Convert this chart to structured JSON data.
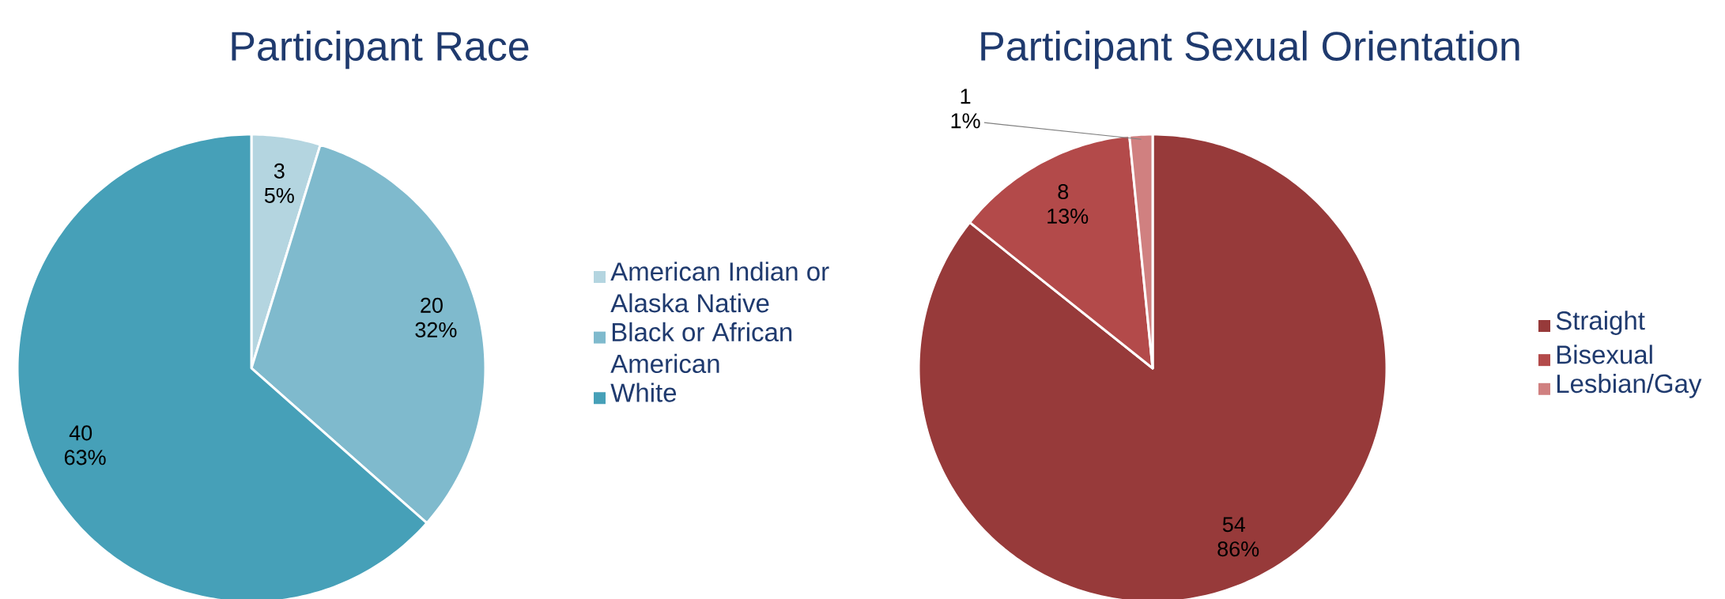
{
  "chart_data": [
    {
      "type": "pie",
      "title": "Participant Race",
      "categories": [
        "American Indian or Alaska Native",
        "Black or African American",
        "White"
      ],
      "values": [
        3,
        20,
        40
      ],
      "colors": [
        "#b4d5e0",
        "#7fbacd",
        "#46a0b8"
      ],
      "value_labels": [
        "3 5%",
        "20 32%",
        "40 63%"
      ],
      "legend": "right"
    },
    {
      "type": "pie",
      "title": "Participant Sexual Orientation",
      "categories": [
        "Straight",
        "Bisexual",
        "Lesbian/Gay"
      ],
      "values": [
        54,
        8,
        1
      ],
      "colors": [
        "#973a3a",
        "#b34a4a",
        "#d08080"
      ],
      "value_labels": [
        "54 86%",
        "8 13%",
        "1 1%"
      ],
      "legend": "right"
    }
  ]
}
